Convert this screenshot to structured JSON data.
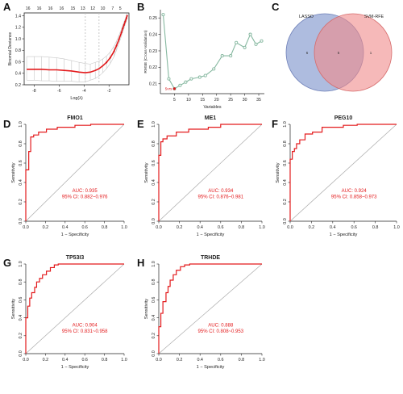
{
  "figure": {
    "panel_labels": [
      "A",
      "B",
      "C",
      "D",
      "E",
      "F",
      "G",
      "H"
    ]
  },
  "chart_data": [
    {
      "panel": "A",
      "type": "line",
      "xlabel": "Log(λ)",
      "ylabel": "Binomial Deviance",
      "top_axis_labels": [
        "16",
        "16",
        "16",
        "16",
        "15",
        "13",
        "12",
        "10",
        "7",
        "5"
      ],
      "top_axis_x": [
        -8.5,
        -7.6,
        -6.7,
        -5.8,
        -4.9,
        -4.1,
        -3.3,
        -2.5,
        -1.7,
        -1.1
      ],
      "xticks": [
        -8,
        -6,
        -4,
        -2
      ],
      "yticks": [
        0.2,
        0.4,
        0.6,
        0.8,
        1.0,
        1.2,
        1.4
      ],
      "xlim": [
        -8.8,
        -0.4
      ],
      "ylim": [
        0.2,
        1.45
      ],
      "vlines": [
        -3.9,
        -2.8
      ],
      "x": [
        -8.6,
        -8.0,
        -7.4,
        -6.8,
        -6.2,
        -5.6,
        -5.0,
        -4.4,
        -3.9,
        -3.5,
        -3.1,
        -2.8,
        -2.5,
        -2.2,
        -1.9,
        -1.6,
        -1.4,
        -1.2,
        -1.0,
        -0.9,
        -0.8,
        -0.7,
        -0.6,
        -0.55
      ],
      "y": [
        0.47,
        0.47,
        0.47,
        0.46,
        0.46,
        0.45,
        0.44,
        0.42,
        0.41,
        0.42,
        0.45,
        0.48,
        0.53,
        0.59,
        0.67,
        0.78,
        0.88,
        0.99,
        1.11,
        1.18,
        1.24,
        1.3,
        1.36,
        1.4
      ],
      "err_low": [
        0.28,
        0.28,
        0.27,
        0.27,
        0.26,
        0.26,
        0.26,
        0.25,
        0.25,
        0.28,
        0.31,
        0.35,
        0.41,
        0.48,
        0.57,
        0.69,
        0.8,
        0.92,
        1.05,
        1.12,
        1.18,
        1.25,
        1.32,
        1.36
      ],
      "err_high": [
        0.69,
        0.69,
        0.69,
        0.68,
        0.67,
        0.65,
        0.62,
        0.59,
        0.57,
        0.56,
        0.59,
        0.61,
        0.65,
        0.7,
        0.77,
        0.87,
        0.96,
        1.06,
        1.17,
        1.23,
        1.29,
        1.35,
        1.4,
        1.44
      ]
    },
    {
      "panel": "B",
      "type": "line",
      "xlabel": "Variables",
      "ylabel": "RMSE (Cross-Validation)",
      "annotation": "5vrs",
      "xticks": [
        5,
        10,
        15,
        20,
        25,
        30,
        35
      ],
      "yticks": [
        0.21,
        0.22,
        0.23,
        0.24,
        0.25
      ],
      "xlim": [
        0,
        37
      ],
      "ylim": [
        0.204,
        0.255
      ],
      "x": [
        1,
        3,
        5,
        7,
        9,
        11,
        14,
        16,
        19,
        22,
        25,
        27,
        30,
        32,
        34,
        36
      ],
      "y": [
        0.252,
        0.213,
        0.207,
        0.209,
        0.211,
        0.213,
        0.214,
        0.215,
        0.219,
        0.227,
        0.227,
        0.235,
        0.232,
        0.24,
        0.234,
        0.236
      ]
    },
    {
      "panel": "C",
      "type": "venn",
      "sets": [
        "LASSO",
        "SVM-RFE"
      ],
      "counts": [
        "6",
        "5",
        "1"
      ]
    },
    {
      "panel": "D",
      "type": "roc",
      "title": "FMO1",
      "auc_label": "AUC: 0.935",
      "ci_label": "95% CI: 0.882~0.976",
      "xlabel": "1 − Specificity",
      "ylabel": "Sensitivity",
      "ticks": [
        "0.0",
        "0.2",
        "0.4",
        "0.6",
        "0.8",
        "1.0"
      ],
      "fpr": [
        0,
        0,
        0.03,
        0.03,
        0.05,
        0.05,
        0.08,
        0.08,
        0.13,
        0.13,
        0.21,
        0.21,
        0.32,
        0.32,
        0.5,
        0.5,
        0.66,
        0.66,
        1
      ],
      "tpr": [
        0,
        0.53,
        0.53,
        0.72,
        0.72,
        0.87,
        0.87,
        0.89,
        0.89,
        0.92,
        0.92,
        0.95,
        0.95,
        0.97,
        0.97,
        0.99,
        0.99,
        1,
        1
      ]
    },
    {
      "panel": "E",
      "type": "roc",
      "title": "ME1",
      "auc_label": "AUC: 0.934",
      "ci_label": "95% CI: 0.876~0.981",
      "xlabel": "1 − Specificity",
      "ylabel": "Sensitivity",
      "ticks": [
        "0.0",
        "0.2",
        "0.4",
        "0.6",
        "0.8",
        "1.0"
      ],
      "fpr": [
        0,
        0,
        0.02,
        0.02,
        0.04,
        0.04,
        0.08,
        0.08,
        0.17,
        0.17,
        0.29,
        0.29,
        0.48,
        0.48,
        0.6,
        0.6,
        1
      ],
      "tpr": [
        0,
        0.68,
        0.68,
        0.82,
        0.82,
        0.85,
        0.85,
        0.88,
        0.88,
        0.92,
        0.92,
        0.95,
        0.95,
        0.97,
        0.97,
        1,
        1
      ]
    },
    {
      "panel": "F",
      "type": "roc",
      "title": "PEG10",
      "auc_label": "AUC: 0.924",
      "ci_label": "95% CI: 0.858~0.973",
      "xlabel": "1 − Specificity",
      "ylabel": "Sensitivity",
      "ticks": [
        "0.0",
        "0.2",
        "0.4",
        "0.6",
        "0.8",
        "1.0"
      ],
      "fpr": [
        0,
        0,
        0.02,
        0.02,
        0.04,
        0.04,
        0.06,
        0.06,
        0.09,
        0.09,
        0.14,
        0.14,
        0.21,
        0.21,
        0.3,
        0.3,
        0.5,
        0.5,
        0.63,
        0.63,
        1
      ],
      "tpr": [
        0,
        0.64,
        0.64,
        0.72,
        0.72,
        0.75,
        0.75,
        0.8,
        0.8,
        0.84,
        0.84,
        0.9,
        0.9,
        0.92,
        0.92,
        0.97,
        0.97,
        0.99,
        0.99,
        1,
        1
      ]
    },
    {
      "panel": "G",
      "type": "roc",
      "title": "TP53I3",
      "auc_label": "AUC: 0.904",
      "ci_label": "95% CI: 0.831~0.958",
      "xlabel": "1 − Specificity",
      "ylabel": "Sensitivity",
      "ticks": [
        "0.0",
        "0.2",
        "0.4",
        "0.6",
        "0.8",
        "1.0"
      ],
      "fpr": [
        0,
        0,
        0.02,
        0.02,
        0.04,
        0.04,
        0.06,
        0.06,
        0.09,
        0.09,
        0.11,
        0.11,
        0.14,
        0.14,
        0.17,
        0.17,
        0.21,
        0.21,
        0.25,
        0.25,
        0.29,
        0.29,
        0.33,
        0.33,
        1
      ],
      "tpr": [
        0,
        0.4,
        0.4,
        0.53,
        0.53,
        0.62,
        0.62,
        0.68,
        0.68,
        0.74,
        0.74,
        0.8,
        0.8,
        0.84,
        0.84,
        0.88,
        0.88,
        0.92,
        0.92,
        0.96,
        0.96,
        0.99,
        0.99,
        1,
        1
      ]
    },
    {
      "panel": "H",
      "type": "roc",
      "title": "TRHDE",
      "auc_label": "AUC: 0.888",
      "ci_label": "95% CI: 0.808~0.953",
      "xlabel": "1 − Specificity",
      "ylabel": "Sensitivity",
      "ticks": [
        "0.0",
        "0.2",
        "0.4",
        "0.6",
        "0.8",
        "1.0"
      ],
      "fpr": [
        0,
        0,
        0.02,
        0.02,
        0.04,
        0.04,
        0.07,
        0.07,
        0.09,
        0.09,
        0.11,
        0.11,
        0.14,
        0.14,
        0.17,
        0.17,
        0.21,
        0.21,
        0.25,
        0.25,
        0.3,
        0.3,
        1
      ],
      "tpr": [
        0,
        0.3,
        0.3,
        0.45,
        0.45,
        0.58,
        0.58,
        0.68,
        0.68,
        0.75,
        0.75,
        0.82,
        0.82,
        0.88,
        0.88,
        0.93,
        0.93,
        0.97,
        0.97,
        0.99,
        0.99,
        1,
        1
      ]
    }
  ],
  "colors": {
    "curve": "#e31a1c",
    "point": "#d7191c",
    "trend": "#86b8a0",
    "diagonal": "#aaaaaa",
    "axis": "#222222",
    "vline": "#bbbbbb",
    "lasso_fill": "#8c9fd1",
    "svm_fill": "#f08a8a"
  }
}
